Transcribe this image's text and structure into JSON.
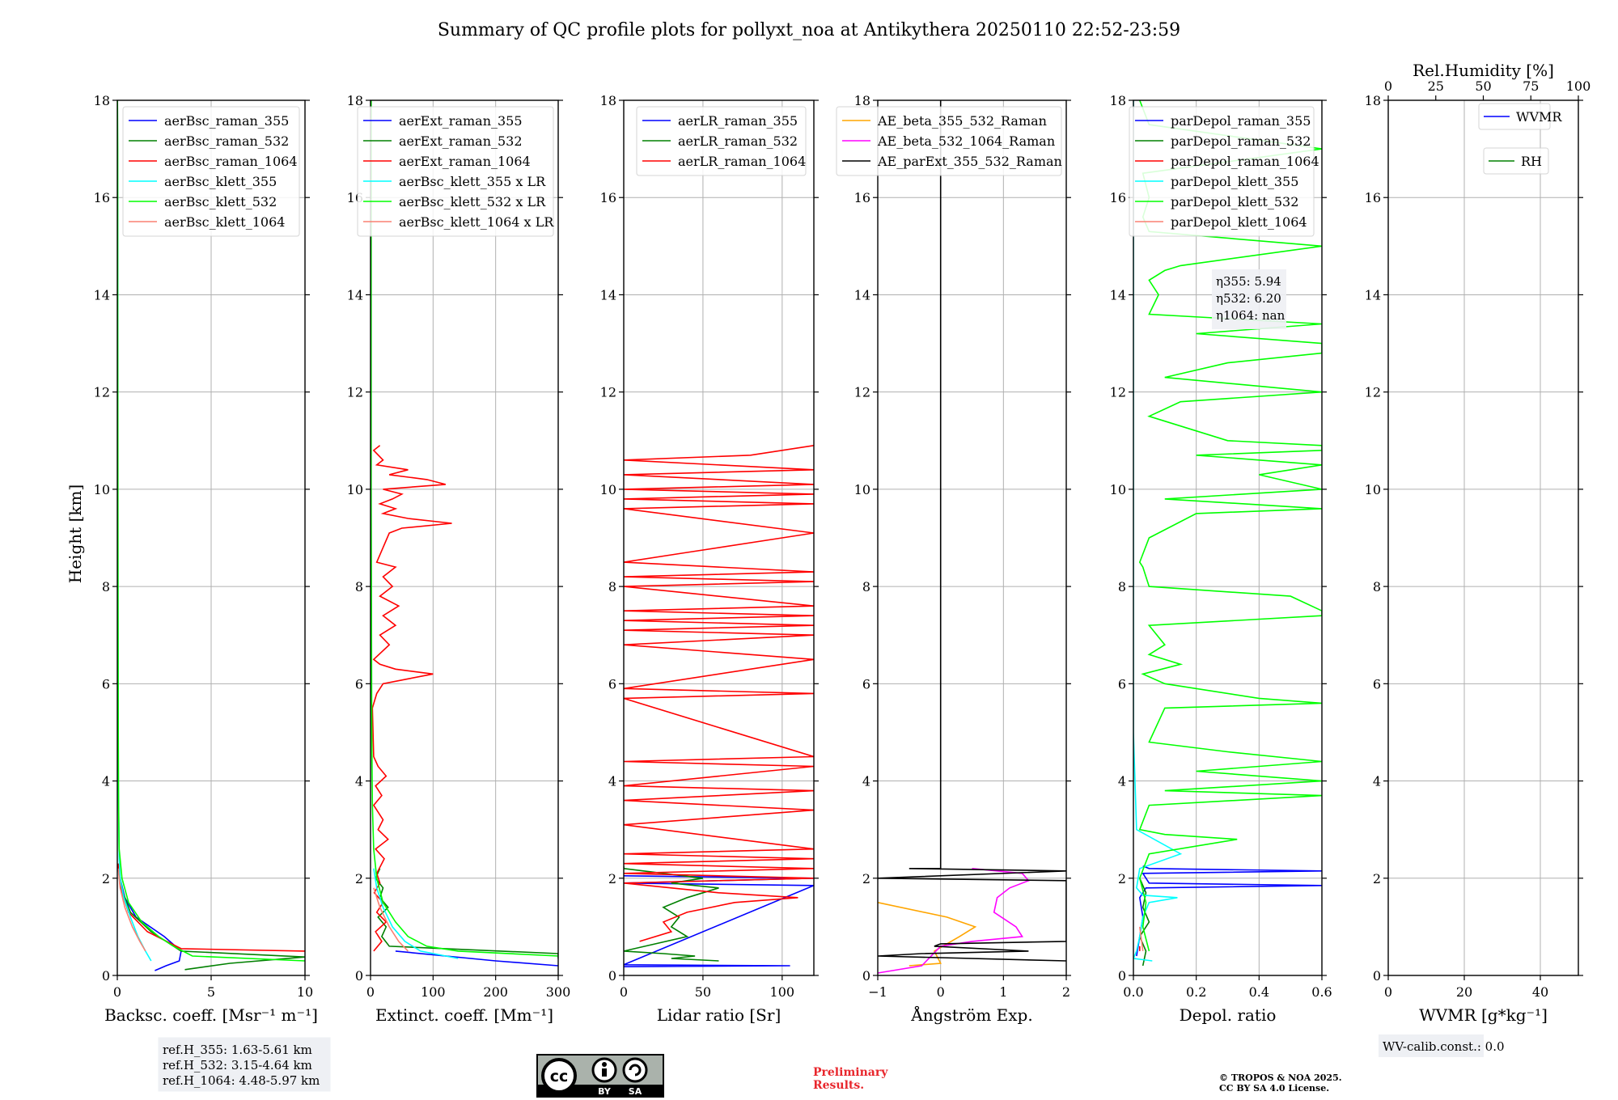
{
  "figure": {
    "title": "Summary of QC profile plots for pollyxt_noa at Antikythera 20250110 22:52-23:59",
    "ylabel": "Height [km]",
    "ref_heights": [
      "ref.H_355: 1.63-5.61 km",
      "ref.H_532: 3.15-4.64 km",
      "ref.H_1064: 4.48-5.97 km"
    ],
    "eta_lines": [
      "η355: 5.94",
      "η532: 6.20",
      "η1064: nan"
    ],
    "wv_calib": "WV-calib.const.: 0.0",
    "preliminary_lines": [
      "Preliminary",
      "Results."
    ],
    "copyright_lines": [
      "© TROPOS & NOA 2025.",
      "CC BY SA 4.0 License."
    ],
    "license_badge": [
      "BY",
      "SA"
    ]
  },
  "colors": {
    "blue": "#0000ff",
    "green": "#008000",
    "red": "#ff0000",
    "cyan": "#00ffff",
    "lime": "#00ff00",
    "salmon": "#fa8072",
    "orange": "#ffa500",
    "magenta": "#ff00ff",
    "black": "#000000"
  },
  "chart_data": [
    {
      "type": "line",
      "id": "bsc",
      "xlabel": "Backsc. coeff. [Msr⁻¹ m⁻¹]",
      "ylabel": "Height [km]",
      "xlim": [
        0,
        10
      ],
      "ylim": [
        0,
        18
      ],
      "xticks": [
        "0",
        "5",
        "10"
      ],
      "yticks": [
        "0",
        "2",
        "4",
        "6",
        "8",
        "10",
        "12",
        "14",
        "16",
        "18"
      ],
      "series": [
        {
          "name": "aerBsc_raman_355",
          "color": "blue",
          "y": [
            0.1,
            0.2,
            0.3,
            0.5,
            0.8,
            1.2,
            1.6,
            2.0,
            2.25
          ],
          "x": [
            2.0,
            2.6,
            3.3,
            3.4,
            2.5,
            1.0,
            0.4,
            0.15,
            0.05
          ]
        },
        {
          "name": "aerBsc_raman_532",
          "color": "green",
          "y": [
            0.12,
            0.25,
            0.38,
            0.5,
            0.9,
            1.3,
            1.7,
            2.1,
            2.3
          ],
          "x": [
            3.6,
            6.0,
            10.0,
            3.4,
            1.8,
            0.7,
            0.3,
            0.1,
            0.05
          ]
        },
        {
          "name": "aerBsc_raman_1064",
          "color": "red",
          "y": [
            0.5,
            0.55,
            0.9,
            1.3,
            1.7,
            2.1,
            2.3
          ],
          "x": [
            10.0,
            3.4,
            1.6,
            0.6,
            0.25,
            0.08,
            0.04
          ]
        },
        {
          "name": "aerBsc_klett_355",
          "color": "cyan",
          "y": [
            0.3,
            0.5,
            0.8,
            1.2,
            1.6,
            2.0,
            2.4,
            3.0,
            4.0,
            6.0,
            9.0,
            12.0,
            15.0,
            18.0
          ],
          "x": [
            1.8,
            1.5,
            1.1,
            0.7,
            0.35,
            0.15,
            0.1,
            0.08,
            0.05,
            0.04,
            0.03,
            0.02,
            0.02,
            0.01
          ]
        },
        {
          "name": "aerBsc_klett_532",
          "color": "lime",
          "y": [
            0.3,
            0.4,
            0.6,
            0.8,
            1.1,
            1.5,
            2.0,
            2.6,
            3.5,
            5.0,
            8.0,
            11.0,
            14.0,
            17.0,
            18.0
          ],
          "x": [
            10.0,
            4.0,
            3.0,
            2.2,
            1.3,
            0.6,
            0.25,
            0.1,
            0.07,
            0.05,
            0.04,
            0.03,
            0.02,
            0.02,
            0.01
          ]
        },
        {
          "name": "aerBsc_klett_1064",
          "color": "salmon",
          "y": [
            0.5,
            0.7,
            1.0,
            1.4,
            1.8,
            2.2
          ],
          "x": [
            1.5,
            1.2,
            0.8,
            0.4,
            0.15,
            0.05
          ]
        }
      ]
    },
    {
      "type": "line",
      "id": "ext",
      "xlabel": "Extinct. coeff. [Mm⁻¹]",
      "xlim": [
        0,
        300
      ],
      "ylim": [
        0,
        18
      ],
      "xticks": [
        "0",
        "100",
        "200",
        "300"
      ],
      "yticks": [
        "0",
        "2",
        "4",
        "6",
        "8",
        "10",
        "12",
        "14",
        "16",
        "18"
      ],
      "series": [
        {
          "name": "aerExt_raman_355",
          "color": "blue",
          "y": [
            0.2,
            0.3,
            0.5
          ],
          "x": [
            300,
            200,
            40
          ]
        },
        {
          "name": "aerExt_raman_532",
          "color": "green",
          "y": [
            0.35,
            0.45,
            0.6,
            0.8,
            1.0,
            1.2,
            1.4,
            1.6,
            1.8,
            2.0,
            2.2
          ],
          "x": [
            300,
            300,
            30,
            18,
            25,
            12,
            28,
            15,
            20,
            8,
            15
          ]
        },
        {
          "name": "aerExt_raman_1064",
          "color": "red",
          "y": [
            0.5,
            0.7,
            0.9,
            1.1,
            1.3,
            1.5,
            1.7,
            1.9,
            2.1,
            2.4,
            2.6,
            2.8,
            3.0,
            3.2,
            3.5,
            3.7,
            3.9,
            4.1,
            4.3,
            4.5,
            5.5,
            5.8,
            6.0,
            6.1,
            6.2,
            6.3,
            6.4,
            6.5,
            6.8,
            7.0,
            7.2,
            7.4,
            7.6,
            7.8,
            8.0,
            8.2,
            8.4,
            8.5,
            9.1,
            9.2,
            9.3,
            9.4,
            9.5,
            9.6,
            9.7,
            9.8,
            9.9,
            10.0,
            10.1,
            10.2,
            10.3,
            10.4,
            10.5,
            10.6,
            10.8,
            10.9
          ],
          "x": [
            5,
            18,
            8,
            25,
            10,
            20,
            6,
            15,
            10,
            22,
            8,
            28,
            12,
            20,
            5,
            18,
            8,
            25,
            12,
            5,
            3,
            10,
            20,
            60,
            100,
            40,
            15,
            5,
            30,
            15,
            40,
            20,
            45,
            15,
            35,
            20,
            40,
            10,
            30,
            50,
            130,
            60,
            20,
            40,
            15,
            35,
            50,
            20,
            120,
            90,
            30,
            60,
            10,
            20,
            5,
            15
          ]
        },
        {
          "name": "aerBsc_klett_355 x LR",
          "color": "cyan",
          "y": [
            0.35,
            0.5,
            0.7,
            1.0,
            1.4,
            1.8,
            2.2
          ],
          "x": [
            140,
            80,
            55,
            35,
            20,
            10,
            5
          ]
        },
        {
          "name": "aerBsc_klett_532 x LR",
          "color": "lime",
          "y": [
            0.4,
            0.5,
            0.6,
            0.8,
            1.1,
            1.5,
            2.0,
            2.6,
            3.5,
            5.0,
            10.0,
            15.0,
            18.0
          ],
          "x": [
            300,
            140,
            90,
            60,
            40,
            20,
            10,
            5,
            3,
            2,
            1,
            1,
            1
          ]
        },
        {
          "name": "aerBsc_klett_1064 x LR",
          "color": "salmon",
          "y": [
            0.5,
            0.7,
            1.0,
            1.4,
            1.8
          ],
          "x": [
            60,
            45,
            30,
            15,
            5
          ]
        }
      ]
    },
    {
      "type": "line",
      "id": "lr",
      "xlabel": "Lidar ratio [Sr]",
      "xlim": [
        0,
        120
      ],
      "ylim": [
        0,
        18
      ],
      "xticks": [
        "0",
        "50",
        "100"
      ],
      "yticks": [
        "0",
        "2",
        "4",
        "6",
        "8",
        "10",
        "12",
        "14",
        "16",
        "18"
      ],
      "series": [
        {
          "name": "aerLR_raman_355",
          "color": "blue",
          "y": [
            0.18,
            0.2,
            0.22,
            1.85,
            1.9,
            2.0,
            2.05
          ],
          "x": [
            0,
            105,
            0,
            120,
            0,
            120,
            0
          ]
        },
        {
          "name": "aerLR_raman_532",
          "color": "green",
          "y": [
            0.3,
            0.35,
            0.4,
            0.45,
            0.5,
            0.8,
            1.0,
            1.2,
            1.4,
            1.6,
            1.8,
            1.9,
            2.0,
            2.2,
            2.25
          ],
          "x": [
            60,
            30,
            45,
            25,
            0,
            40,
            30,
            35,
            25,
            40,
            60,
            30,
            50,
            0,
            0
          ]
        },
        {
          "name": "aerLR_raman_1064",
          "color": "red",
          "y": [
            0.7,
            0.9,
            1.1,
            1.3,
            1.5,
            1.6,
            1.7,
            1.8,
            1.9,
            2.0,
            2.1,
            2.2,
            2.3,
            2.4,
            2.5,
            2.6,
            3.1,
            3.4,
            3.6,
            3.8,
            3.9,
            4.3,
            4.4,
            4.5,
            5.7,
            5.8,
            5.9,
            6.5,
            6.8,
            7.0,
            7.1,
            7.2,
            7.3,
            7.4,
            7.5,
            7.6,
            8.0,
            8.1,
            8.2,
            8.3,
            8.5,
            8.7,
            9.1,
            9.6,
            9.7,
            9.8,
            9.9,
            10.0,
            10.1,
            10.3,
            10.4,
            10.6,
            10.7,
            10.9
          ],
          "x": [
            10,
            30,
            25,
            40,
            70,
            110,
            60,
            30,
            0,
            120,
            0,
            120,
            0,
            120,
            0,
            120,
            0,
            120,
            0,
            120,
            0,
            120,
            0,
            120,
            0,
            120,
            0,
            120,
            0,
            120,
            0,
            120,
            0,
            120,
            0,
            120,
            0,
            120,
            0,
            120,
            0,
            40,
            120,
            0,
            120,
            0,
            120,
            0,
            120,
            0,
            120,
            0,
            80,
            120
          ]
        }
      ]
    },
    {
      "type": "line",
      "id": "ae",
      "xlabel": "Ångström Exp.",
      "xlim": [
        -1,
        2
      ],
      "ylim": [
        0,
        18
      ],
      "xticks": [
        "−1",
        "0",
        "1",
        "2"
      ],
      "yticks": [
        "0",
        "2",
        "4",
        "6",
        "8",
        "10",
        "12",
        "14",
        "16",
        "18"
      ],
      "series": [
        {
          "name": "AE_beta_355_532_Raman",
          "color": "orange",
          "y": [
            0.2,
            0.25,
            0.5,
            0.8,
            1.0,
            1.2,
            1.5
          ],
          "x": [
            -0.5,
            0.0,
            -0.1,
            0.3,
            0.55,
            0.1,
            -1.0
          ]
        },
        {
          "name": "AE_beta_532_1064_Raman",
          "color": "magenta",
          "y": [
            0.05,
            0.2,
            0.6,
            0.7,
            0.8,
            1.0,
            1.3,
            1.6,
            1.8,
            1.95,
            2.1,
            2.2
          ],
          "x": [
            -1.0,
            -0.3,
            0.0,
            0.5,
            1.3,
            1.2,
            0.85,
            0.9,
            1.1,
            1.4,
            1.3,
            0.5
          ]
        },
        {
          "name": "AE_parExt_355_532_Raman",
          "color": "black",
          "y": [
            0.3,
            0.4,
            0.45,
            0.5,
            0.6,
            0.65,
            0.7,
            1.95,
            2.0,
            2.15,
            2.2,
            2.2,
            18.0
          ],
          "x": [
            2.0,
            -1.0,
            -0.3,
            1.4,
            -0.1,
            0.0,
            2.0,
            2.0,
            -1.0,
            2.0,
            -0.5,
            0.0,
            0.0
          ]
        }
      ]
    },
    {
      "type": "line",
      "id": "depol",
      "xlabel": "Depol. ratio",
      "xlim": [
        0,
        0.6
      ],
      "ylim": [
        0,
        18
      ],
      "xticks": [
        "0.0",
        "0.2",
        "0.4",
        "0.6"
      ],
      "yticks": [
        "0",
        "2",
        "4",
        "6",
        "8",
        "10",
        "12",
        "14",
        "16",
        "18"
      ],
      "series": [
        {
          "name": "parDepol_raman_355",
          "color": "blue",
          "y": [
            0.4,
            0.8,
            1.2,
            1.6,
            1.8,
            1.85,
            1.9,
            2.1,
            2.15,
            2.2,
            2.25
          ],
          "x": [
            0.01,
            0.02,
            0.03,
            0.02,
            0.04,
            0.6,
            0.05,
            0.03,
            0.6,
            0.05,
            0.03
          ]
        },
        {
          "name": "parDepol_raman_532",
          "color": "green",
          "y": [
            0.2,
            0.5,
            0.8,
            1.1,
            1.4,
            1.7,
            2.0
          ],
          "x": [
            0.03,
            0.04,
            0.02,
            0.05,
            0.03,
            0.04,
            0.02
          ]
        },
        {
          "name": "parDepol_raman_1064",
          "color": "red",
          "y": [
            0.5,
            0.6
          ],
          "x": [
            0.02,
            0.02
          ]
        },
        {
          "name": "parDepol_klett_355",
          "color": "cyan",
          "y": [
            0.3,
            0.35,
            0.5,
            0.8,
            1.2,
            1.5,
            1.6,
            1.65,
            1.8,
            2.2,
            2.5,
            3.0,
            5.0,
            10.0,
            18.0
          ],
          "x": [
            0.06,
            0.0,
            0.01,
            0.02,
            0.03,
            0.05,
            0.14,
            0.03,
            0.01,
            0.02,
            0.15,
            0.01,
            0.0,
            0.0,
            0.0
          ]
        },
        {
          "name": "parDepol_klett_532",
          "color": "lime",
          "y": [
            0.5,
            1.0,
            1.5,
            2.0,
            2.5,
            2.8,
            2.9,
            3.0,
            3.5,
            3.7,
            3.8,
            4.0,
            4.2,
            4.4,
            4.6,
            4.8,
            5.5,
            5.6,
            5.7,
            6.0,
            6.2,
            6.4,
            6.6,
            6.8,
            7.2,
            7.4,
            7.5,
            7.8,
            8.0,
            8.4,
            8.5,
            9.0,
            9.5,
            9.6,
            9.8,
            10.0,
            10.3,
            10.5,
            10.7,
            10.8,
            10.9,
            11.0,
            11.5,
            11.8,
            12.0,
            12.3,
            12.6,
            12.8,
            13.0,
            13.2,
            13.4,
            13.6,
            14.0,
            14.3,
            14.5,
            14.6,
            15.0,
            15.3,
            15.6,
            16.0,
            16.5,
            17.0,
            17.5,
            18.0
          ],
          "x": [
            0.05,
            0.03,
            0.04,
            0.02,
            0.05,
            0.33,
            0.1,
            0.02,
            0.05,
            0.6,
            0.1,
            0.6,
            0.2,
            0.6,
            0.3,
            0.05,
            0.1,
            0.6,
            0.4,
            0.1,
            0.03,
            0.15,
            0.05,
            0.1,
            0.05,
            0.6,
            0.6,
            0.5,
            0.05,
            0.03,
            0.02,
            0.05,
            0.2,
            0.6,
            0.1,
            0.6,
            0.4,
            0.6,
            0.2,
            0.6,
            0.6,
            0.3,
            0.05,
            0.15,
            0.6,
            0.1,
            0.3,
            0.6,
            0.6,
            0.2,
            0.6,
            0.05,
            0.08,
            0.05,
            0.1,
            0.15,
            0.6,
            0.05,
            0.03,
            0.05,
            0.03,
            0.6,
            0.05,
            0.02
          ]
        },
        {
          "name": "parDepol_klett_1064",
          "color": "salmon",
          "y": [
            0.5,
            1.0
          ],
          "x": [
            0.03,
            0.02
          ]
        }
      ]
    },
    {
      "type": "line",
      "id": "wv",
      "xlabel": "WVMR [g*kg⁻¹]",
      "top_xlabel": "Rel.Humidity [%]",
      "xlim": [
        0,
        50
      ],
      "top_xlim": [
        0,
        100
      ],
      "ylim": [
        0,
        18
      ],
      "xticks": [
        "0",
        "20",
        "40"
      ],
      "top_xticks": [
        "0",
        "25",
        "50",
        "75",
        "100"
      ],
      "yticks": [
        "0",
        "2",
        "4",
        "6",
        "8",
        "10",
        "12",
        "14",
        "16",
        "18"
      ],
      "series": [
        {
          "name": "WVMR",
          "color": "blue",
          "y": [],
          "x": []
        },
        {
          "name": "RH",
          "color": "green",
          "y": [],
          "x": []
        }
      ]
    }
  ]
}
